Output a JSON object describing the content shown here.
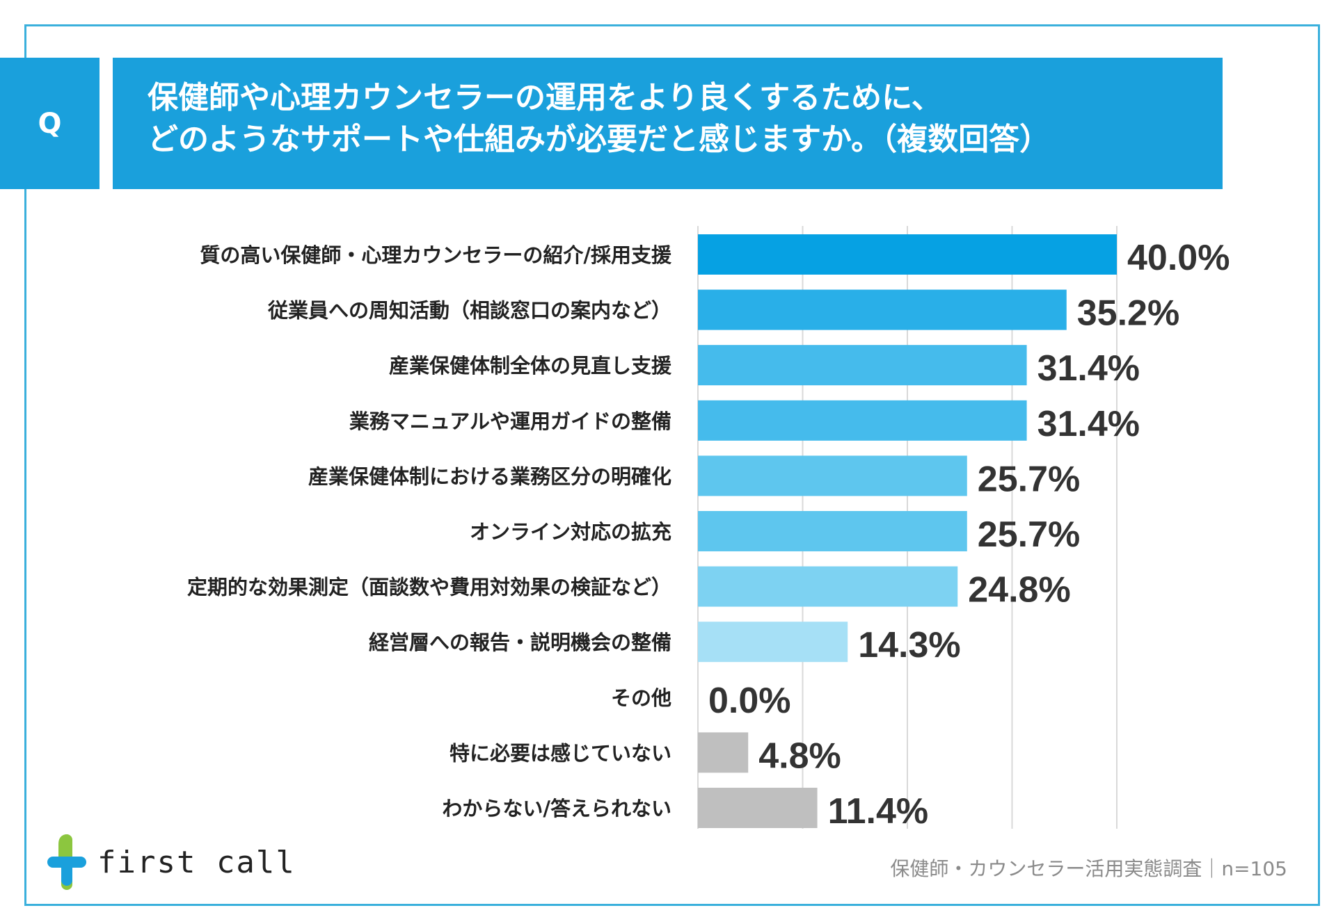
{
  "question": {
    "badge": "Q",
    "line1": "保健師や心理カウンセラーの運用をより良くするために、",
    "line2": "どのようなサポートや仕組みが必要だと感じますか。（複数回答）"
  },
  "chart_data": {
    "type": "bar",
    "orientation": "horizontal",
    "title": "保健師や心理カウンセラーの運用をより良くするために、どのようなサポートや仕組みが必要だと感じますか。（複数回答）",
    "xlim": [
      0,
      40
    ],
    "grid": true,
    "unit": "%",
    "categories": [
      "質の高い保健師・心理カウンセラーの紹介/採用支援",
      "従業員への周知活動（相談窓口の案内など）",
      "産業保健体制全体の見直し支援",
      "業務マニュアルや運用ガイドの整備",
      "産業保健体制における業務区分の明確化",
      "オンライン対応の拡充",
      "定期的な効果測定（面談数や費用対効果の検証など）",
      "経営層への報告・説明機会の整備",
      "その他",
      "特に必要は感じていない",
      "わからない/答えられない"
    ],
    "values": [
      40.0,
      35.2,
      31.4,
      31.4,
      25.7,
      25.7,
      24.8,
      14.3,
      0.0,
      4.8,
      11.4
    ],
    "value_labels": [
      "40.0%",
      "35.2%",
      "31.4%",
      "31.4%",
      "25.7%",
      "25.7%",
      "24.8%",
      "14.3%",
      "0.0%",
      "4.8%",
      "11.4%"
    ],
    "colors": [
      "#06a1e3",
      "#29afe8",
      "#45bbec",
      "#45bbec",
      "#5ec6ee",
      "#5ec6ee",
      "#7dd2f2",
      "#a6e0f6",
      "#a6e0f6",
      "#bfbfbf",
      "#bfbfbf"
    ]
  },
  "footer": {
    "survey_label": "保健師・カウンセラー活用実態調査｜n=105",
    "logo_text": "first call"
  }
}
